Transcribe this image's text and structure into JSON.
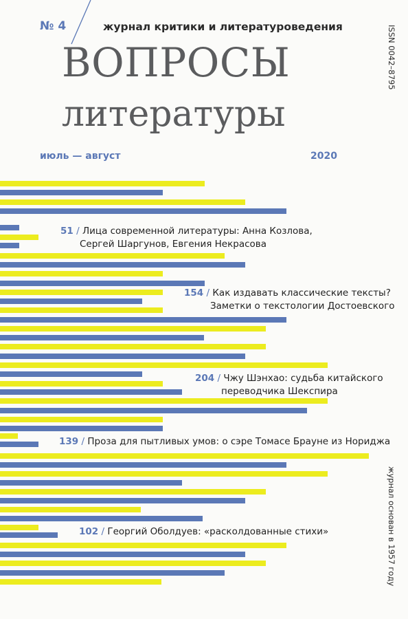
{
  "header": {
    "issue_number": "№ 4",
    "subtitle": "журнал критики и литературоведения",
    "title_line1": "ВОПРОСЫ",
    "title_line2": "литературы",
    "period": "июль — август",
    "year": "2020",
    "issn": "ISSN 0042–8795",
    "founded": "журнал основан в 1957 году"
  },
  "colors": {
    "yellow_bar": "#ecec1f",
    "blue_bar": "#5b78b6",
    "accent_text": "#5b78b6",
    "title_gray": "#5b5c5e"
  },
  "toc": [
    {
      "page": "51",
      "lines": [
        "Лица современной литературы: Анна Козлова,",
        "Сергей Шаргунов, Евгения Некрасова"
      ]
    },
    {
      "page": "154",
      "lines": [
        "Как издавать классические тексты?",
        "Заметки о текстологии Достоевского"
      ]
    },
    {
      "page": "204",
      "lines": [
        "Чжу Шэнхао: судьба китайского",
        "переводчика Шекспира"
      ]
    },
    {
      "page": "139",
      "lines": [
        "Проза для пытливых умов: о сэре Томасе Брауне из Нориджа"
      ]
    },
    {
      "page": "102",
      "lines": [
        "Георгий Оболдуев: «расколдованные стихи»"
      ]
    }
  ]
}
